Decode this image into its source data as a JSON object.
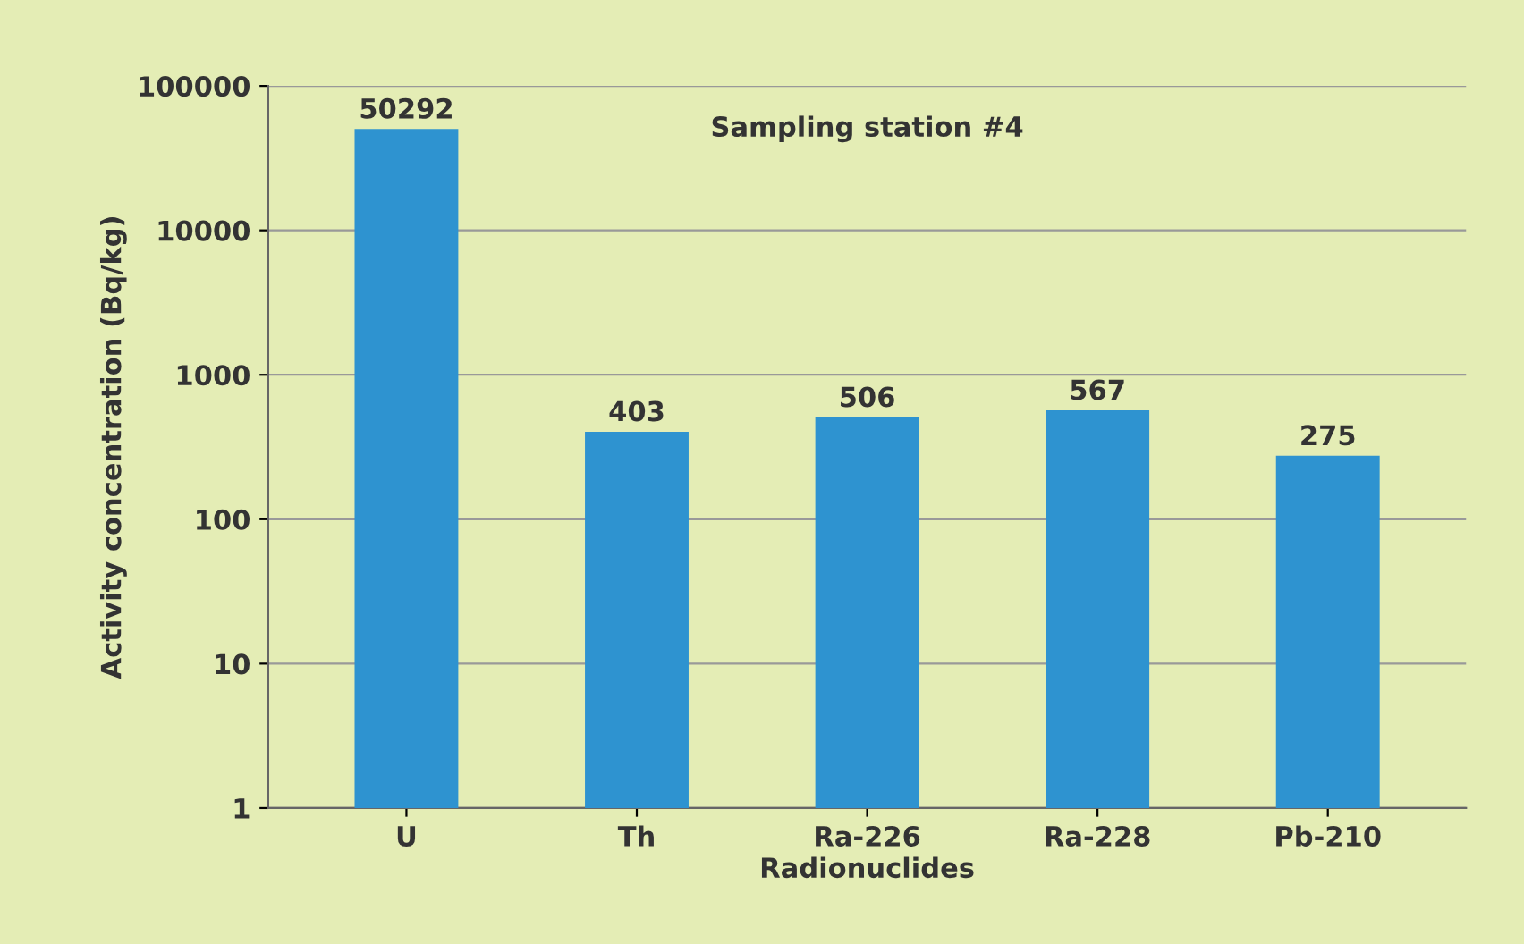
{
  "chart_data": {
    "type": "bar",
    "title": "Sampling station #4",
    "xlabel": "Radionuclides",
    "ylabel": "Activity concentration (Bq/kg)",
    "categories": [
      "U",
      "Th",
      "Ra-226",
      "Ra-228",
      "Pb-210"
    ],
    "values": [
      50292,
      403,
      506,
      567,
      275
    ],
    "color": "#2e93d0",
    "log": true,
    "ylim": [
      1,
      100000
    ],
    "yticks": [
      1,
      10,
      100,
      1000,
      10000,
      100000
    ],
    "grid": "y",
    "data_labels": true
  }
}
